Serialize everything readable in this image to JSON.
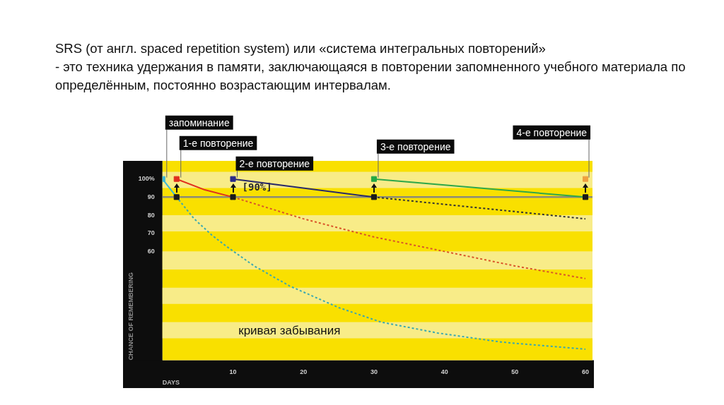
{
  "chart_data": {
    "type": "line",
    "title": "SRS (от англ. spaced repetition system) или «система интегральных повторений»",
    "subtitle": "- это техника удержания в памяти, заключающаяся в повторении запомненного учебного материала по определённым, постоянно возрастающим интервалам.",
    "xlabel": "DAYS",
    "ylabel": "CHANCE OF REMEMBERING",
    "xlim": [
      0,
      61
    ],
    "xticks": [
      10,
      20,
      30,
      40,
      50,
      60
    ],
    "ylim": [
      0,
      110
    ],
    "yticks": [
      60,
      70,
      80,
      90,
      {
        "value": 100,
        "label": "100%"
      }
    ],
    "legend": false,
    "series": [
      {
        "color": "#3bb8d8",
        "line_style": "solid",
        "marker": "none",
        "x": [
          0,
          2
        ],
        "values": [
          100,
          90
        ]
      },
      {
        "name": "кривая забывания",
        "color": "#3aa8b0",
        "line_style": "dashed",
        "marker": "none",
        "x": [
          2,
          4.5,
          7,
          9,
          13,
          18,
          25,
          31,
          39,
          48,
          60
        ],
        "values": [
          90,
          78,
          69,
          63,
          52,
          41,
          29,
          21,
          15,
          10,
          6
        ]
      },
      {
        "color": "#e0301e",
        "line_style": "solid",
        "marker": "none",
        "x": [
          2,
          6,
          10
        ],
        "values": [
          100,
          94,
          90
        ]
      },
      {
        "color": "#d9552a",
        "line_style": "dashed",
        "marker": "none",
        "x": [
          10,
          20,
          30,
          40,
          50,
          60
        ],
        "values": [
          90,
          78,
          68,
          60,
          52,
          45
        ]
      },
      {
        "color": "#2a2a6a",
        "line_style": "solid",
        "marker": "none",
        "x": [
          10,
          30
        ],
        "values": [
          100,
          90
        ]
      },
      {
        "color": "#333333",
        "line_style": "dashed",
        "marker": "none",
        "x": [
          30,
          45,
          60
        ],
        "values": [
          90,
          84,
          78
        ]
      },
      {
        "color": "#2ea84a",
        "line_style": "solid",
        "marker": "none",
        "x": [
          30,
          60
        ],
        "values": [
          100,
          90
        ]
      },
      {
        "type": "scatter",
        "marker": "square",
        "x": [
          0,
          2,
          10,
          30,
          60
        ],
        "values": [
          100,
          100,
          100,
          100,
          100
        ],
        "colors": [
          "#3bb8d8",
          "#e0301e",
          "#2a2a8a",
          "#22a844",
          "#f0a040"
        ]
      },
      {
        "type": "scatter",
        "marker": "square",
        "color": "#1a1a1a",
        "x": [
          2,
          10,
          30,
          60
        ],
        "values": [
          90,
          90,
          90,
          90
        ]
      }
    ],
    "ref_lines": [
      {
        "axis": "y",
        "value": 90,
        "label": "[90%]",
        "color": "#8c8c78"
      }
    ],
    "bands": [
      {
        "axis": "y",
        "from": 95,
        "to": 104,
        "color": "#f8ec88"
      },
      {
        "axis": "y",
        "from": 71,
        "to": 80,
        "color": "#f8ec88"
      },
      {
        "axis": "y",
        "from": 50,
        "to": 60,
        "color": "#f8ec88"
      },
      {
        "axis": "y",
        "from": 31,
        "to": 40,
        "color": "#f8ec88"
      },
      {
        "axis": "y",
        "from": 12,
        "to": 21,
        "color": "#f8ec88"
      }
    ],
    "annotations": [
      {
        "text": "запоминание",
        "x": 0,
        "y": 100
      },
      {
        "text": "1-е повторение",
        "x": 2,
        "y": 100
      },
      {
        "text": "2-е повторение",
        "x": 10,
        "y": 100
      },
      {
        "text": "3-е повторение",
        "x": 30,
        "y": 100
      },
      {
        "text": "4-е повторение",
        "x": 60,
        "y": 100
      }
    ]
  }
}
